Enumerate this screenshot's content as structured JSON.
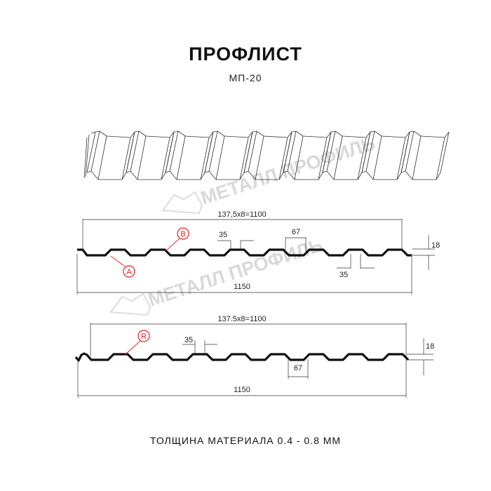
{
  "title": "ПРОФЛИСТ",
  "subtitle": "МП-20",
  "watermark": "МЕТАЛЛ ПРОФИЛЬ",
  "profile_top": {
    "pitch_label": "137,5x8=1100",
    "width_label": "1150",
    "rib_top_label": "35",
    "rib_bottom_label": "35",
    "rib_span_label": "67",
    "height_label": "18",
    "marker_a": "A",
    "marker_b": "B"
  },
  "profile_bottom": {
    "pitch_label": "137.5x8=1100",
    "width_label": "1150",
    "rib_top_label": "35",
    "rib_span_label": "67",
    "height_label": "18",
    "marker_r": "R"
  },
  "footer": "ТОЛЩИНА МАТЕРИАЛА 0.4 - 0.8 ММ",
  "colors": {
    "marker": "#e02020",
    "profile": "#111111",
    "watermark": "#d9d9d9"
  }
}
